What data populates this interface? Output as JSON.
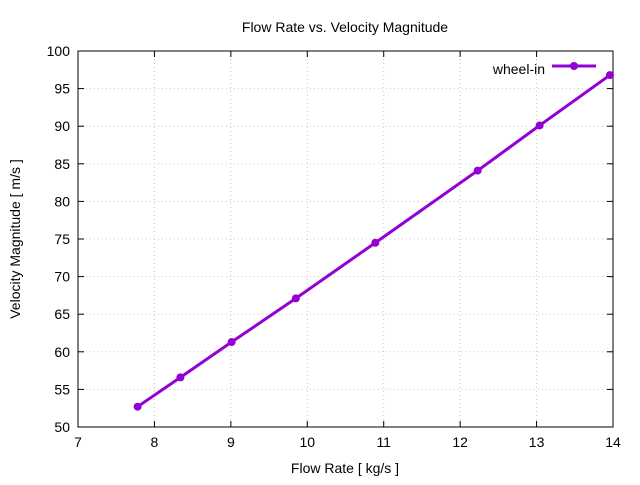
{
  "chart_data": {
    "type": "line",
    "title": "Flow Rate vs. Velocity Magnitude",
    "xlabel": "Flow Rate [ kg/s ]",
    "ylabel": "Velocity Magnitude [ m/s ]",
    "xlim": [
      7,
      14
    ],
    "ylim": [
      50,
      100
    ],
    "xticks": [
      7,
      8,
      9,
      10,
      11,
      12,
      13,
      14
    ],
    "yticks": [
      50,
      55,
      60,
      65,
      70,
      75,
      80,
      85,
      90,
      95,
      100
    ],
    "grid": true,
    "legend_position": "top-right",
    "series": [
      {
        "name": "wheel-in",
        "color": "#9400d3",
        "x": [
          7.78,
          8.34,
          9.01,
          9.85,
          10.89,
          12.23,
          13.04,
          13.96
        ],
        "y": [
          52.7,
          56.6,
          61.3,
          67.1,
          74.5,
          84.1,
          90.1,
          96.8
        ]
      }
    ]
  }
}
